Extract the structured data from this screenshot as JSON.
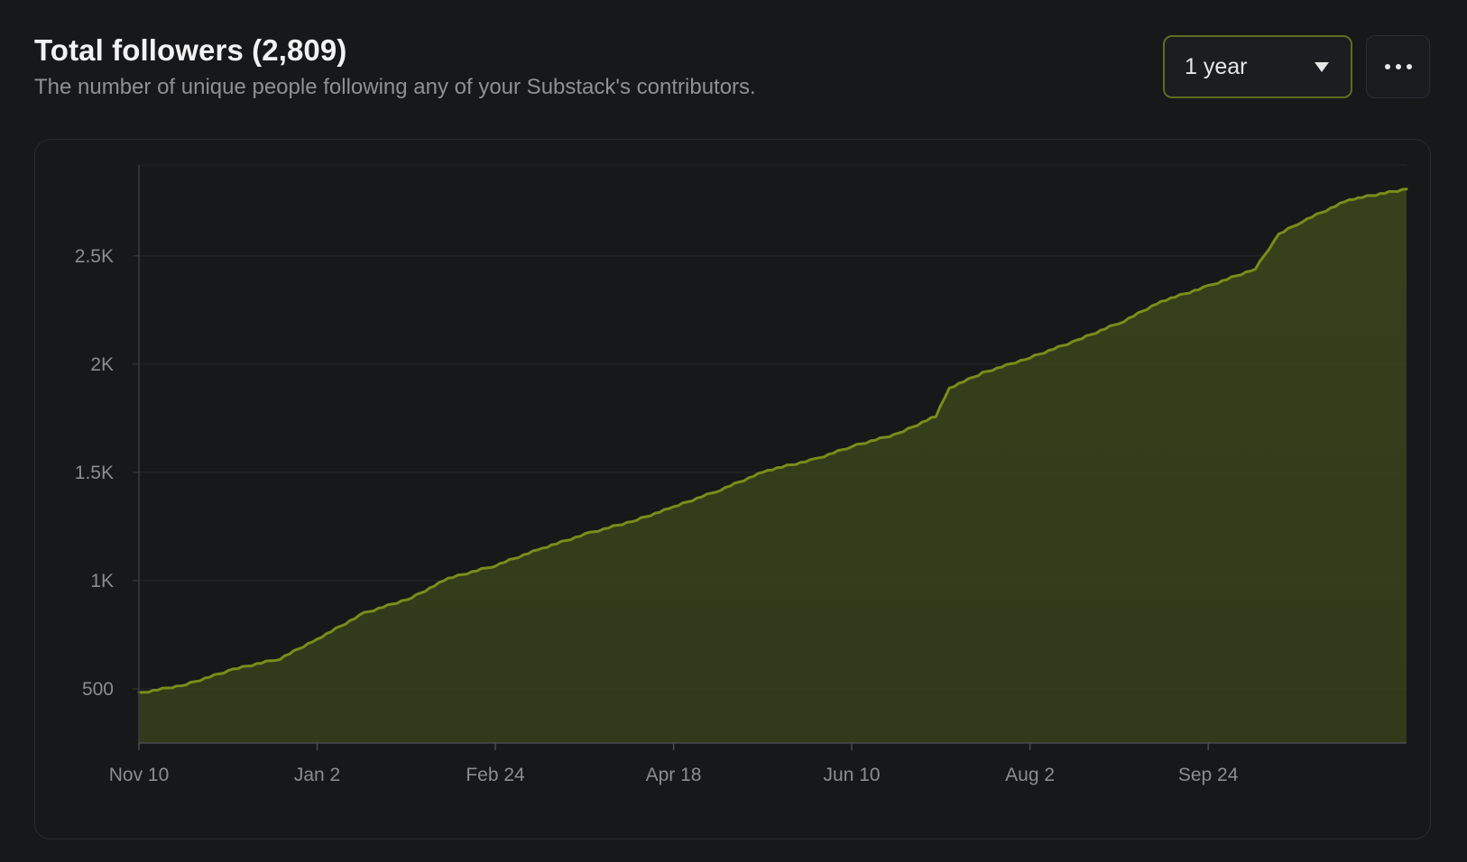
{
  "header": {
    "title": "Total followers (2,809)",
    "subtitle": "The number of unique people following any of your Substack's contributors."
  },
  "controls": {
    "range_value": "1 year",
    "range_icon": "chevron-down-icon",
    "more_icon": "more-horizontal-icon"
  },
  "colors": {
    "background": "#17181a",
    "accent": "#7a8c1a",
    "area_fill": "#3a451b"
  },
  "chart_data": {
    "type": "area",
    "title": "Total followers (2,809)",
    "xlabel": "",
    "ylabel": "",
    "x_ticks": [
      "Nov 10",
      "Jan 2",
      "Feb 24",
      "Apr 18",
      "Jun 10",
      "Aug 2",
      "Sep 24"
    ],
    "y_ticks": [
      "500",
      "1K",
      "1.5K",
      "2K",
      "2.5K"
    ],
    "y_tick_values": [
      500,
      1000,
      1500,
      2000,
      2500
    ],
    "ylim": [
      250,
      2920
    ],
    "xlim": [
      "Nov 10",
      "Nov 22"
    ],
    "grid": true,
    "series": [
      {
        "x": [
          "Nov 10",
          "Nov 24",
          "Dec 8",
          "Dec 22",
          "Jan 2",
          "Jan 16",
          "Jan 30",
          "Feb 10",
          "Feb 24",
          "Mar 10",
          "Mar 24",
          "Apr 7",
          "Apr 18",
          "May 2",
          "May 16",
          "May 30",
          "Jun 10",
          "Jun 24",
          "Jul 5",
          "Jul 9",
          "Jul 19",
          "Aug 2",
          "Aug 16",
          "Aug 30",
          "Sep 10",
          "Sep 24",
          "Oct 8",
          "Oct 15",
          "Oct 22",
          "Nov 5",
          "Nov 22"
        ],
        "values": [
          480,
          520,
          590,
          640,
          730,
          850,
          920,
          1010,
          1070,
          1150,
          1220,
          1280,
          1340,
          1420,
          1510,
          1560,
          1620,
          1680,
          1760,
          1890,
          1960,
          2030,
          2110,
          2200,
          2290,
          2360,
          2440,
          2600,
          2660,
          2760,
          2809
        ]
      }
    ]
  }
}
